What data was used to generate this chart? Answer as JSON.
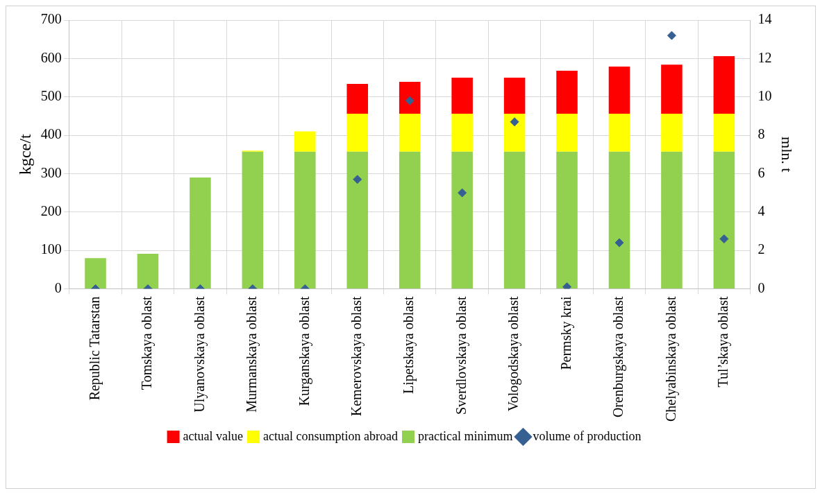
{
  "chart_data": {
    "type": "bar",
    "stacked": true,
    "ylabel": "kgce/t",
    "y2label": "mln. t",
    "categories": [
      "Republic Tatarstan",
      "Tomskaya oblast",
      "Ulyanovskaya oblast",
      "Murmanskaya oblast",
      "Kurganskaya oblast",
      "Kemerovskaya oblast",
      "Lipetskaya oblast",
      "Sverdlovskaya oblast",
      "Vologodskaya oblast",
      "Permsky krai",
      "Orenburgskaya oblast",
      "Chelyabinskaya oblast",
      "Tul’skaya oblast"
    ],
    "series": [
      {
        "name": "practical minimum",
        "color": "#92d050",
        "values": [
          80,
          91,
          290,
          357,
          357,
          357,
          357,
          357,
          357,
          357,
          357,
          357,
          357
        ]
      },
      {
        "name": "actual consumption abroad",
        "color": "#ffff00",
        "values": [
          null,
          null,
          null,
          3,
          53,
          99,
          99,
          99,
          99,
          99,
          99,
          99,
          99
        ]
      },
      {
        "name": "actual value",
        "color": "#ff0000",
        "values": [
          null,
          null,
          null,
          null,
          null,
          78,
          83,
          94,
          94,
          112,
          123,
          128,
          150
        ]
      },
      {
        "name": "volume of production",
        "type": "scatter",
        "axis": "y2",
        "marker": "diamond",
        "color": "#376092",
        "x": [
          "Republic Tatarstan",
          "Tomskaya oblast",
          "Ulyanovskaya oblast",
          "Murmanskaya oblast",
          "Kurganskaya oblast",
          "Kemerovskaya oblast",
          "Lipetskaya oblast",
          "Sverdlovskaya oblast",
          "Vologodskaya oblast",
          "Permsky krai",
          "Orenburgskaya oblast",
          "Chelyabinskaya oblast",
          "Tul’skaya oblast"
        ],
        "values": [
          0,
          0,
          0,
          0,
          0,
          5.7,
          9.8,
          5.0,
          8.7,
          0.1,
          2.4,
          13.2,
          2.6
        ]
      }
    ],
    "ylim": [
      0,
      700
    ],
    "yticks": [
      0,
      100,
      200,
      300,
      400,
      500,
      600,
      700
    ],
    "y2lim": [
      0,
      14
    ],
    "y2ticks": [
      0,
      2,
      4,
      6,
      8,
      10,
      12,
      14
    ],
    "grid": true,
    "legend": "bottom"
  }
}
